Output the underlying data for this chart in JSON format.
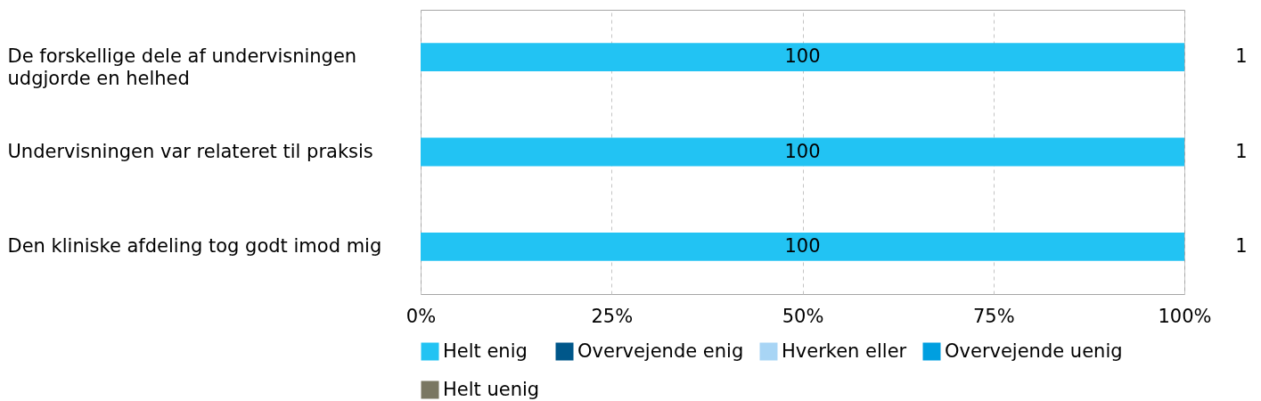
{
  "chart_data": {
    "type": "bar",
    "orientation": "horizontal",
    "stacked": true,
    "categories": [
      "De forskellige dele af undervisningen udgjorde en helhed",
      "Undervisningen var relateret til praksis",
      "Den kliniske afdeling tog godt imod mig"
    ],
    "series": [
      {
        "name": "Helt enig",
        "color": "#22c3f3",
        "values": [
          100,
          100,
          100
        ],
        "value_labels": [
          "100",
          "100",
          "100"
        ]
      },
      {
        "name": "Overvejende enig",
        "color": "#00578a",
        "values": [
          0,
          0,
          0
        ]
      },
      {
        "name": "Hverken eller",
        "color": "#a8d5f5",
        "values": [
          0,
          0,
          0
        ]
      },
      {
        "name": "Overvejende uenig",
        "color": "#009fe0",
        "values": [
          0,
          0,
          0
        ]
      },
      {
        "name": "Helt uenig",
        "color": "#7a7762",
        "values": [
          0,
          0,
          0
        ]
      }
    ],
    "xlim": [
      0,
      100
    ],
    "xticks": [
      {
        "value": 0,
        "label": "0%"
      },
      {
        "value": 25,
        "label": "25%"
      },
      {
        "value": 50,
        "label": "50%"
      },
      {
        "value": 75,
        "label": "75%"
      },
      {
        "value": 100,
        "label": "100%"
      }
    ],
    "grid": "x",
    "legend": "bottom",
    "annotations": [
      "1",
      "1",
      "1"
    ]
  }
}
